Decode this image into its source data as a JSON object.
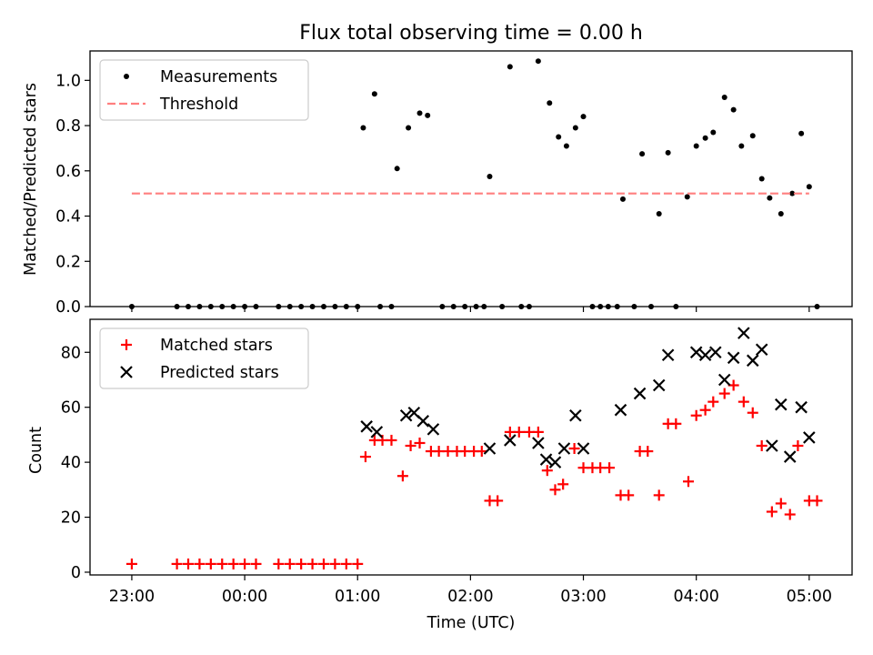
{
  "chart_data": [
    {
      "type": "scatter",
      "title": "Flux total observing time = 0.00 h",
      "xlabel": "",
      "ylabel": "Matched/Predicted stars",
      "ylim": [
        0,
        1.13
      ],
      "yticks": [
        "0.0",
        "0.2",
        "0.4",
        "0.6",
        "0.8",
        "1.0"
      ],
      "xlim_hours": [
        -1.37,
        5.38
      ],
      "legend_position": "upper-left",
      "series": [
        {
          "name": "Measurements",
          "marker": "dot",
          "color": "#000000",
          "points": [
            [
              -1.0,
              0
            ],
            [
              -0.6,
              0
            ],
            [
              -0.5,
              0
            ],
            [
              -0.4,
              0
            ],
            [
              -0.3,
              0
            ],
            [
              -0.2,
              0
            ],
            [
              -0.1,
              0
            ],
            [
              0.0,
              0
            ],
            [
              0.1,
              0
            ],
            [
              0.3,
              0
            ],
            [
              0.4,
              0
            ],
            [
              0.5,
              0
            ],
            [
              0.6,
              0
            ],
            [
              0.7,
              0
            ],
            [
              0.8,
              0
            ],
            [
              0.9,
              0
            ],
            [
              1.0,
              0
            ],
            [
              1.05,
              0.79
            ],
            [
              1.15,
              0.94
            ],
            [
              1.2,
              0
            ],
            [
              1.3,
              0
            ],
            [
              1.35,
              0.61
            ],
            [
              1.45,
              0.79
            ],
            [
              1.55,
              0.855
            ],
            [
              1.62,
              0.845
            ],
            [
              1.75,
              0
            ],
            [
              1.85,
              0
            ],
            [
              1.95,
              0
            ],
            [
              2.05,
              0
            ],
            [
              2.12,
              0
            ],
            [
              2.17,
              0.575
            ],
            [
              2.28,
              0
            ],
            [
              2.35,
              1.06
            ],
            [
              2.45,
              0
            ],
            [
              2.52,
              0
            ],
            [
              2.6,
              1.085
            ],
            [
              2.7,
              0.9
            ],
            [
              2.78,
              0.75
            ],
            [
              2.85,
              0.71
            ],
            [
              2.93,
              0.79
            ],
            [
              3.0,
              0.84
            ],
            [
              3.08,
              0
            ],
            [
              3.15,
              0
            ],
            [
              3.22,
              0
            ],
            [
              3.3,
              0
            ],
            [
              3.35,
              0.475
            ],
            [
              3.45,
              0
            ],
            [
              3.52,
              0.675
            ],
            [
              3.6,
              0
            ],
            [
              3.67,
              0.41
            ],
            [
              3.75,
              0.68
            ],
            [
              3.82,
              0
            ],
            [
              3.92,
              0.485
            ],
            [
              4.0,
              0.71
            ],
            [
              4.08,
              0.745
            ],
            [
              4.15,
              0.77
            ],
            [
              4.25,
              0.925
            ],
            [
              4.33,
              0.87
            ],
            [
              4.4,
              0.71
            ],
            [
              4.5,
              0.755
            ],
            [
              4.58,
              0.565
            ],
            [
              4.65,
              0.48
            ],
            [
              4.75,
              0.41
            ],
            [
              4.85,
              0.5
            ],
            [
              4.93,
              0.765
            ],
            [
              5.0,
              0.53
            ],
            [
              5.07,
              0
            ]
          ]
        },
        {
          "name": "Threshold",
          "style": "dashed",
          "color": "#ff7f7f",
          "x": [
            -1.0,
            5.0
          ],
          "y": [
            0.5,
            0.5
          ]
        }
      ]
    },
    {
      "type": "scatter",
      "title": "",
      "xlabel": "Time (UTC)",
      "ylabel": "Count",
      "ylim": [
        -1,
        92
      ],
      "yticks": [
        "0",
        "20",
        "40",
        "60",
        "80"
      ],
      "xlim_hours": [
        -1.37,
        5.38
      ],
      "xticks": [
        {
          "h": -1,
          "label": "23:00"
        },
        {
          "h": 0,
          "label": "00:00"
        },
        {
          "h": 1,
          "label": "01:00"
        },
        {
          "h": 2,
          "label": "02:00"
        },
        {
          "h": 3,
          "label": "03:00"
        },
        {
          "h": 4,
          "label": "04:00"
        },
        {
          "h": 5,
          "label": "05:00"
        }
      ],
      "legend_position": "upper-left",
      "series": [
        {
          "name": "Matched stars",
          "marker": "plus",
          "color": "#ff0000",
          "points": [
            [
              -1.0,
              3
            ],
            [
              -0.6,
              3
            ],
            [
              -0.5,
              3
            ],
            [
              -0.4,
              3
            ],
            [
              -0.3,
              3
            ],
            [
              -0.2,
              3
            ],
            [
              -0.1,
              3
            ],
            [
              0.0,
              3
            ],
            [
              0.1,
              3
            ],
            [
              0.3,
              3
            ],
            [
              0.4,
              3
            ],
            [
              0.5,
              3
            ],
            [
              0.6,
              3
            ],
            [
              0.7,
              3
            ],
            [
              0.8,
              3
            ],
            [
              0.9,
              3
            ],
            [
              1.0,
              3
            ],
            [
              1.07,
              42
            ],
            [
              1.15,
              48
            ],
            [
              1.22,
              48
            ],
            [
              1.3,
              48
            ],
            [
              1.4,
              35
            ],
            [
              1.47,
              46
            ],
            [
              1.55,
              47
            ],
            [
              1.65,
              44
            ],
            [
              1.72,
              44
            ],
            [
              1.8,
              44
            ],
            [
              1.88,
              44
            ],
            [
              1.95,
              44
            ],
            [
              2.03,
              44
            ],
            [
              2.1,
              44
            ],
            [
              2.17,
              26
            ],
            [
              2.24,
              26
            ],
            [
              2.35,
              51
            ],
            [
              2.43,
              51
            ],
            [
              2.52,
              51
            ],
            [
              2.6,
              51
            ],
            [
              2.68,
              37
            ],
            [
              2.75,
              30
            ],
            [
              2.82,
              32
            ],
            [
              2.92,
              45
            ],
            [
              3.0,
              38
            ],
            [
              3.08,
              38
            ],
            [
              3.15,
              38
            ],
            [
              3.23,
              38
            ],
            [
              3.33,
              28
            ],
            [
              3.4,
              28
            ],
            [
              3.5,
              44
            ],
            [
              3.57,
              44
            ],
            [
              3.67,
              28
            ],
            [
              3.75,
              54
            ],
            [
              3.82,
              54
            ],
            [
              3.93,
              33
            ],
            [
              4.0,
              57
            ],
            [
              4.08,
              59
            ],
            [
              4.15,
              62
            ],
            [
              4.25,
              65
            ],
            [
              4.33,
              68
            ],
            [
              4.42,
              62
            ],
            [
              4.5,
              58
            ],
            [
              4.58,
              46
            ],
            [
              4.67,
              22
            ],
            [
              4.75,
              25
            ],
            [
              4.83,
              21
            ],
            [
              4.9,
              46
            ],
            [
              5.0,
              26
            ],
            [
              5.07,
              26
            ]
          ]
        },
        {
          "name": "Predicted stars",
          "marker": "x",
          "color": "#000000",
          "points": [
            [
              1.08,
              53
            ],
            [
              1.17,
              51
            ],
            [
              1.43,
              57
            ],
            [
              1.5,
              58
            ],
            [
              1.58,
              55
            ],
            [
              1.67,
              52
            ],
            [
              2.17,
              45
            ],
            [
              2.35,
              48
            ],
            [
              2.6,
              47
            ],
            [
              2.67,
              41
            ],
            [
              2.75,
              40
            ],
            [
              2.83,
              45
            ],
            [
              2.93,
              57
            ],
            [
              3.0,
              45
            ],
            [
              3.33,
              59
            ],
            [
              3.5,
              65
            ],
            [
              3.67,
              68
            ],
            [
              3.75,
              79
            ],
            [
              4.0,
              80
            ],
            [
              4.08,
              79
            ],
            [
              4.17,
              80
            ],
            [
              4.25,
              70
            ],
            [
              4.33,
              78
            ],
            [
              4.42,
              87
            ],
            [
              4.5,
              77
            ],
            [
              4.58,
              81
            ],
            [
              4.67,
              46
            ],
            [
              4.75,
              61
            ],
            [
              4.83,
              42
            ],
            [
              4.93,
              60
            ],
            [
              5.0,
              49
            ]
          ]
        }
      ]
    }
  ]
}
